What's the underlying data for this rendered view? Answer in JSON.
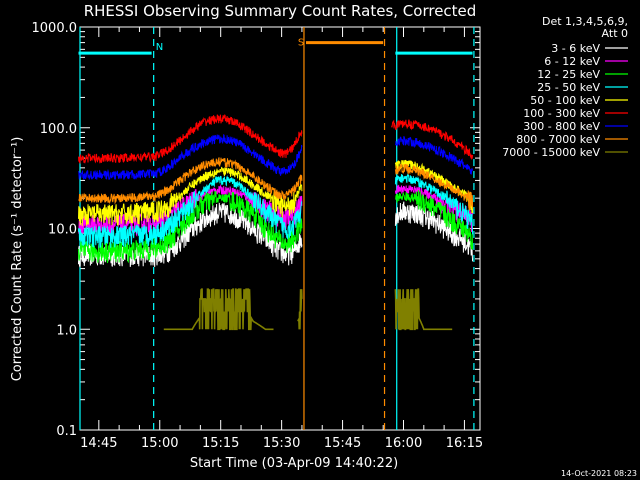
{
  "page": {
    "background": "#000000",
    "foreground": "#ffffff"
  },
  "chart_data": {
    "type": "line",
    "title": "RHESSI Observing Summary Count Rates, Corrected",
    "xlabel": "Start Time (03-Apr-09 14:40:22)",
    "ylabel": "Corrected Count Rate (s⁻¹ detector⁻¹)",
    "yscale": "log",
    "xlim": [
      "14:40:22",
      "16:18:50"
    ],
    "ylim": [
      0.1,
      1000
    ],
    "x_ticks": [
      "14:45",
      "15:00",
      "15:15",
      "15:30",
      "15:45",
      "16:00",
      "16:15"
    ],
    "y_ticks": [
      "0.1",
      "1.0",
      "10.0",
      "100.0",
      "1000.0"
    ],
    "legend_header": [
      "Det 1,3,4,5,6,9,",
      "Att 0"
    ],
    "legend_position": "top-right-outside",
    "series": [
      {
        "name": "3 - 6 keV",
        "color": "#ffffff",
        "segments": [
          {
            "x": [
              "14:40",
              "14:50",
              "14:59",
              "15:02",
              "15:05",
              "15:08",
              "15:11",
              "15:14",
              "15:17",
              "15:20",
              "15:23",
              "15:26",
              "15:29",
              "15:31",
              "15:33",
              "15:35"
            ],
            "y": [
              5.5,
              5.5,
              5.5,
              6,
              7.5,
              10,
              12.5,
              14.5,
              14.5,
              12.5,
              10,
              8,
              6.2,
              5.5,
              6,
              8
            ]
          },
          {
            "x": [
              "15:58",
              "16:00",
              "16:03",
              "16:06",
              "16:09",
              "16:12",
              "16:15",
              "16:17"
            ],
            "y": [
              14,
              15,
              14.5,
              13,
              11,
              9,
              7.5,
              6
            ]
          }
        ]
      },
      {
        "name": "6 - 12 keV",
        "color": "#ff00ff",
        "segments": [
          {
            "x": [
              "14:40",
              "14:50",
              "14:59",
              "15:02",
              "15:05",
              "15:08",
              "15:11",
              "15:14",
              "15:17",
              "15:20",
              "15:23",
              "15:26",
              "15:29",
              "15:31",
              "15:33",
              "15:35"
            ],
            "y": [
              11,
              11,
              11.5,
              13,
              16,
              19,
              22,
              24,
              24,
              22,
              19,
              16,
              13.5,
              12.5,
              14,
              18
            ]
          },
          {
            "x": [
              "15:58",
              "16:00",
              "16:03",
              "16:06",
              "16:09",
              "16:12",
              "16:15",
              "16:17"
            ],
            "y": [
              24,
              25,
              24,
              22,
              19,
              16,
              14,
              12
            ]
          }
        ]
      },
      {
        "name": "12 - 25 keV",
        "color": "#00ff00",
        "segments": [
          {
            "x": [
              "14:40",
              "14:50",
              "14:59",
              "15:02",
              "15:05",
              "15:08",
              "15:11",
              "15:14",
              "15:17",
              "15:20",
              "15:23",
              "15:26",
              "15:29",
              "15:31",
              "15:33",
              "15:35"
            ],
            "y": [
              6,
              6,
              6.5,
              7.5,
              10,
              14,
              18,
              20,
              20,
              17,
              14,
              10,
              8,
              7,
              8,
              11
            ]
          },
          {
            "x": [
              "15:58",
              "16:00",
              "16:03",
              "16:06",
              "16:09",
              "16:12",
              "16:15",
              "16:17"
            ],
            "y": [
              20,
              21,
              20,
              18,
              15,
              12,
              10,
              8
            ]
          }
        ]
      },
      {
        "name": "25 - 50 keV",
        "color": "#00ffff",
        "segments": [
          {
            "x": [
              "14:40",
              "14:50",
              "14:59",
              "15:02",
              "15:05",
              "15:08",
              "15:11",
              "15:14",
              "15:17",
              "15:20",
              "15:23",
              "15:26",
              "15:29",
              "15:31",
              "15:33",
              "15:35"
            ],
            "y": [
              8.5,
              8.5,
              9,
              10.5,
              13.5,
              18,
              24,
              30,
              30,
              26,
              20,
              15,
              11.5,
              10,
              11,
              15
            ]
          },
          {
            "x": [
              "15:58",
              "16:00",
              "16:03",
              "16:06",
              "16:09",
              "16:12",
              "16:15",
              "16:17"
            ],
            "y": [
              30,
              32,
              30,
              26,
              22,
              18,
              14,
              11
            ]
          }
        ]
      },
      {
        "name": "50 - 100 keV",
        "color": "#ffff00",
        "segments": [
          {
            "x": [
              "14:40",
              "14:50",
              "14:59",
              "15:02",
              "15:05",
              "15:08",
              "15:11",
              "15:14",
              "15:17",
              "15:20",
              "15:23",
              "15:26",
              "15:29",
              "15:31",
              "15:33",
              "15:35"
            ],
            "y": [
              14,
              14,
              15,
              17,
              21,
              27,
              33,
              37,
              37,
              33,
              27,
              22,
              18,
              16,
              19,
              26
            ]
          },
          {
            "x": [
              "15:58",
              "16:00",
              "16:03",
              "16:06",
              "16:09",
              "16:12",
              "16:15",
              "16:17"
            ],
            "y": [
              42,
              44,
              42,
              37,
              31,
              26,
              22,
              18
            ]
          }
        ]
      },
      {
        "name": "100 - 300 keV",
        "color": "#ff0000",
        "segments": [
          {
            "x": [
              "14:40",
              "14:50",
              "14:59",
              "15:02",
              "15:05",
              "15:08",
              "15:11",
              "15:14",
              "15:17",
              "15:20",
              "15:23",
              "15:26",
              "15:29",
              "15:31",
              "15:33",
              "15:35"
            ],
            "y": [
              50,
              50,
              52,
              60,
              75,
              95,
              115,
              123,
              120,
              105,
              85,
              70,
              58,
              55,
              65,
              95
            ]
          },
          {
            "x": [
              "15:57",
              "16:00",
              "16:03",
              "16:06",
              "16:09",
              "16:12",
              "16:15",
              "16:17"
            ],
            "y": [
              105,
              110,
              108,
              100,
              88,
              75,
              62,
              52
            ]
          }
        ]
      },
      {
        "name": "300 - 800 keV",
        "color": "#0000ff",
        "segments": [
          {
            "x": [
              "14:40",
              "14:50",
              "14:59",
              "15:02",
              "15:05",
              "15:08",
              "15:11",
              "15:14",
              "15:17",
              "15:20",
              "15:23",
              "15:26",
              "15:29",
              "15:31",
              "15:33",
              "15:35"
            ],
            "y": [
              34,
              34,
              35,
              40,
              50,
              62,
              72,
              78,
              77,
              68,
              56,
              46,
              38,
              36,
              42,
              62
            ]
          },
          {
            "x": [
              "15:58",
              "16:00",
              "16:03",
              "16:06",
              "16:09",
              "16:12",
              "16:15",
              "16:17"
            ],
            "y": [
              72,
              75,
              72,
              66,
              58,
              50,
              42,
              36
            ]
          }
        ]
      },
      {
        "name": "800 - 7000 keV",
        "color": "#ff8c00",
        "segments": [
          {
            "x": [
              "14:40",
              "14:50",
              "14:59",
              "15:02",
              "15:05",
              "15:08",
              "15:11",
              "15:14",
              "15:17",
              "15:20",
              "15:23",
              "15:26",
              "15:29",
              "15:31",
              "15:33",
              "15:35"
            ],
            "y": [
              20,
              20,
              21,
              24,
              30,
              37,
              43,
              46,
              45,
              40,
              33,
              27,
              22,
              21,
              24,
              32
            ]
          },
          {
            "x": [
              "15:58",
              "16:00",
              "16:03",
              "16:06",
              "16:09",
              "16:12",
              "16:15",
              "16:17"
            ],
            "y": [
              38,
              40,
              38,
              34,
              29,
              25,
              21,
              18
            ]
          }
        ]
      },
      {
        "name": "7000 - 15000 keV",
        "color": "#808000",
        "segments": [
          {
            "x": [
              "15:01",
              "15:05",
              "15:08",
              "15:11",
              "15:14",
              "15:17",
              "15:20",
              "15:23",
              "15:26",
              "15:28"
            ],
            "y": [
              1,
              1,
              1,
              1.5,
              2.2,
              2.5,
              1.8,
              1.2,
              1,
              1
            ]
          },
          {
            "x": [
              "15:34",
              "15:35"
            ],
            "y": [
              1.2,
              1.5
            ]
          },
          {
            "x": [
              "15:58",
              "16:00",
              "16:03",
              "16:05",
              "16:08",
              "16:12"
            ],
            "y": [
              2.2,
              2.5,
              1.5,
              1,
              1,
              1
            ]
          }
        ]
      }
    ],
    "annotations": {
      "night_bars": [
        {
          "from": "14:40",
          "to": "14:58",
          "level": 550,
          "color": "#00ffff"
        },
        {
          "from": "15:58",
          "to": "16:17",
          "level": 550,
          "color": "#00ffff"
        }
      ],
      "saa_bar": {
        "from": "15:36",
        "to": "15:55",
        "level": 700,
        "color": "#ff8c00"
      },
      "vlines": [
        {
          "at": "14:40:22",
          "color": "#00ffff",
          "dashed": false
        },
        {
          "at": "14:58:30",
          "color": "#00ffff",
          "dashed": true
        },
        {
          "at": "15:35:30",
          "color": "#ff8c00",
          "dashed": false
        },
        {
          "at": "15:55:20",
          "color": "#ff8c00",
          "dashed": true
        },
        {
          "at": "15:58:20",
          "color": "#00ffff",
          "dashed": false
        },
        {
          "at": "16:17:20",
          "color": "#00ffff",
          "dashed": true
        }
      ],
      "labels": [
        {
          "text": "N",
          "at": "14:59",
          "level": 650,
          "color": "#00ffff"
        },
        {
          "text": "S",
          "at": "15:34",
          "level": 720,
          "color": "#ff8c00"
        }
      ]
    }
  },
  "footer": {
    "timestamp": "14-Oct-2021 08:23"
  }
}
